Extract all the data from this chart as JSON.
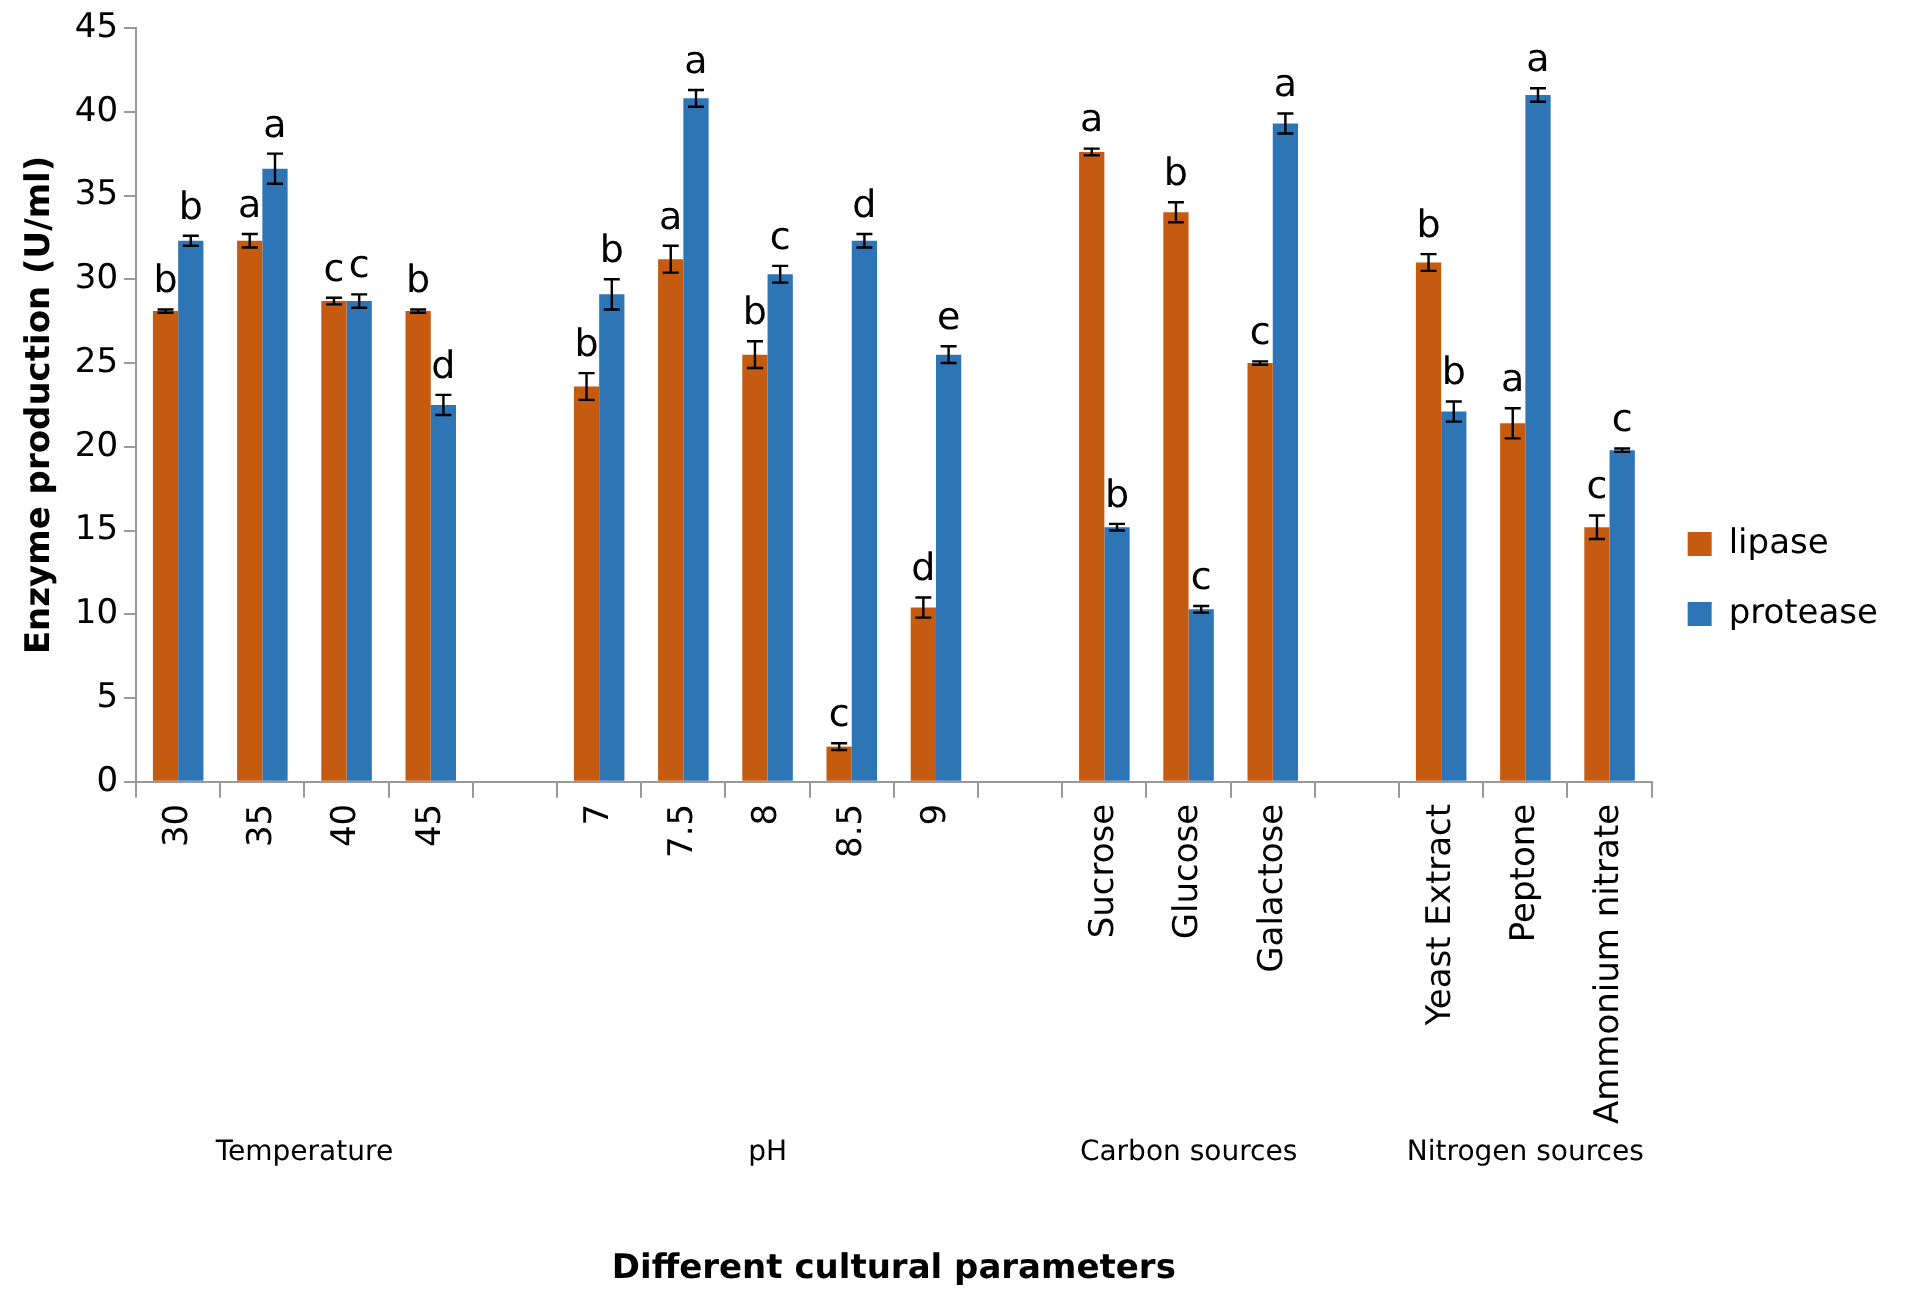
{
  "chart_data": {
    "type": "bar",
    "xlabel": "Different cultural parameters",
    "ylabel": "Enzyme production (U/ml)",
    "categories": [
      "30",
      "35",
      "40",
      "45",
      null,
      "7",
      "7.5",
      "8",
      "8.5",
      "9",
      null,
      "Sucrose",
      "Glucose",
      "Galactose",
      null,
      "Yeast Extract",
      "Peptone",
      "Ammonium nitrate"
    ],
    "series": [
      {
        "name": "lipase",
        "color": "#c55a11",
        "values": [
          28.1,
          32.3,
          28.7,
          28.1,
          null,
          23.6,
          31.2,
          25.5,
          2.1,
          10.4,
          null,
          37.6,
          34.0,
          25.0,
          null,
          31.0,
          21.4,
          15.2
        ],
        "errors": [
          0.1,
          0.4,
          0.2,
          0.1,
          null,
          0.8,
          0.8,
          0.8,
          0.2,
          0.6,
          null,
          0.2,
          0.6,
          0.1,
          null,
          0.5,
          0.9,
          0.7
        ],
        "value_labels": [
          "b",
          "a",
          "c",
          "b",
          null,
          "b",
          "a",
          "b",
          "c",
          "d",
          null,
          "a",
          "b",
          "c",
          null,
          "b",
          "a",
          "c"
        ]
      },
      {
        "name": "protease",
        "color": "#2e75b6",
        "values": [
          32.3,
          36.6,
          28.7,
          22.5,
          null,
          29.1,
          40.8,
          30.3,
          32.3,
          25.5,
          null,
          15.2,
          10.3,
          39.3,
          null,
          22.1,
          41.0,
          19.8
        ],
        "errors": [
          0.3,
          0.9,
          0.4,
          0.6,
          null,
          0.9,
          0.5,
          0.5,
          0.4,
          0.5,
          null,
          0.2,
          0.2,
          0.6,
          null,
          0.6,
          0.4,
          0.1
        ],
        "value_labels": [
          "b",
          "a",
          "c",
          "d",
          null,
          "b",
          "a",
          "c",
          "d",
          "e",
          null,
          "b",
          "c",
          "a",
          null,
          "b",
          "a",
          "c"
        ]
      }
    ],
    "ylim": [
      0,
      45
    ],
    "yticks": [
      0,
      5,
      10,
      15,
      20,
      25,
      30,
      35,
      40,
      45
    ],
    "grid": false,
    "legend": "right",
    "annotations": [
      "Temperature",
      "pH",
      "Carbon sources",
      "Nitrogen sources"
    ]
  }
}
